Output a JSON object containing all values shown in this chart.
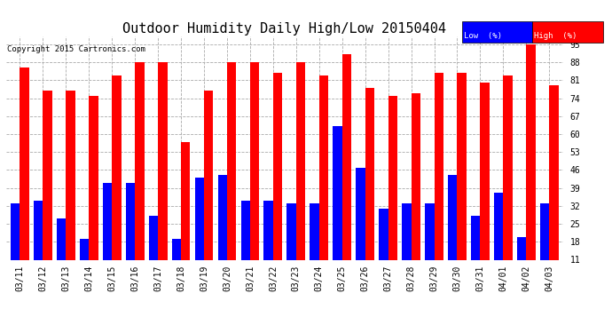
{
  "title": "Outdoor Humidity Daily High/Low 20150404",
  "copyright": "Copyright 2015 Cartronics.com",
  "dates": [
    "03/11",
    "03/12",
    "03/13",
    "03/14",
    "03/15",
    "03/16",
    "03/17",
    "03/18",
    "03/19",
    "03/20",
    "03/21",
    "03/22",
    "03/23",
    "03/24",
    "03/25",
    "03/26",
    "03/27",
    "03/28",
    "03/29",
    "03/30",
    "03/31",
    "04/01",
    "04/02",
    "04/03"
  ],
  "high": [
    86,
    77,
    77,
    75,
    83,
    88,
    88,
    57,
    77,
    88,
    88,
    84,
    88,
    83,
    91,
    78,
    75,
    76,
    84,
    84,
    80,
    83,
    95,
    79
  ],
  "low": [
    33,
    34,
    27,
    19,
    41,
    41,
    28,
    19,
    43,
    44,
    34,
    34,
    33,
    33,
    63,
    47,
    31,
    33,
    33,
    44,
    28,
    37,
    20,
    33
  ],
  "ylim_min": 11,
  "ylim_max": 98,
  "yticks": [
    11,
    18,
    25,
    32,
    39,
    46,
    53,
    60,
    67,
    74,
    81,
    88,
    95
  ],
  "high_color": "#ff0000",
  "low_color": "#0000ff",
  "bar_width": 0.4,
  "bg_color": "#ffffff",
  "grid_color": "#aaaaaa",
  "title_fontsize": 11,
  "axis_fontsize": 7,
  "copyright_fontsize": 6.5,
  "legend_bg_low": "#0000aa",
  "legend_bg_high": "#cc0000",
  "legend_text": "#ffffff"
}
